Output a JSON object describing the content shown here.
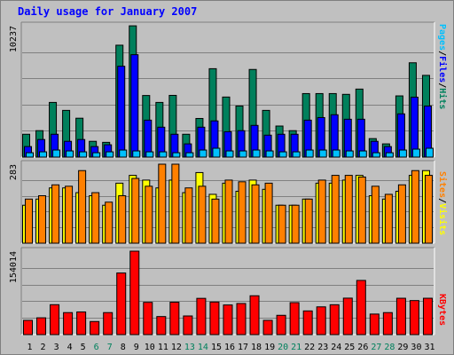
{
  "title": "Daily usage for January 2007",
  "colors": {
    "background": "#c0c0c0",
    "title": "#0000ff",
    "hits": "#00805c",
    "files": "#0000ff",
    "pages": "#00c0ff",
    "visits": "#ffff00",
    "sites": "#ff8000",
    "kbytes": "#ff0000",
    "weekend_day_label": "#00805c",
    "weekday_day_label": "#000000"
  },
  "chart_data": [
    {
      "type": "bar",
      "title": "Daily usage for January 2007",
      "panel": "top",
      "y_max_label": "10237",
      "ylim": [
        0,
        10237
      ],
      "legend_placement": "right, vertical",
      "legend": [
        "Pages",
        "Files",
        "Hits"
      ],
      "grid": true,
      "categories": [
        "1",
        "2",
        "3",
        "4",
        "5",
        "6",
        "7",
        "8",
        "9",
        "10",
        "11",
        "12",
        "13",
        "14",
        "15",
        "16",
        "17",
        "18",
        "19",
        "20",
        "21",
        "22",
        "23",
        "24",
        "25",
        "26",
        "27",
        "28",
        "29",
        "30",
        "31"
      ],
      "series": [
        {
          "name": "Hits",
          "color": "#00805c",
          "values": [
            1780,
            2060,
            4260,
            3640,
            3030,
            1230,
            1150,
            8720,
            10230,
            4800,
            4260,
            4810,
            1780,
            3010,
            6890,
            4680,
            3980,
            6830,
            3640,
            2420,
            2060,
            4950,
            4950,
            4950,
            4890,
            5300,
            1440,
            1030,
            4770,
            7350,
            6370
          ]
        },
        {
          "name": "Files",
          "color": "#0000ff",
          "values": [
            820,
            1370,
            1780,
            1230,
            1370,
            820,
            960,
            7080,
            7980,
            2880,
            2330,
            1780,
            1030,
            2330,
            2820,
            1980,
            2060,
            2470,
            1710,
            1780,
            1780,
            2880,
            3080,
            3300,
            2950,
            2950,
            1230,
            820,
            3370,
            4670,
            3980
          ]
        },
        {
          "name": "Pages",
          "color": "#00c0ff",
          "values": [
            340,
            410,
            550,
            480,
            410,
            340,
            410,
            550,
            480,
            410,
            410,
            340,
            340,
            550,
            690,
            480,
            480,
            550,
            480,
            410,
            410,
            550,
            550,
            550,
            480,
            480,
            340,
            340,
            550,
            620,
            690
          ]
        }
      ]
    },
    {
      "type": "bar",
      "panel": "middle",
      "y_max_label": "283",
      "ylim": [
        0,
        283
      ],
      "legend_placement": "right, vertical",
      "legend": [
        "Sites",
        "Visits"
      ],
      "grid": true,
      "categories": [
        "1",
        "2",
        "3",
        "4",
        "5",
        "6",
        "7",
        "8",
        "9",
        "10",
        "11",
        "12",
        "13",
        "14",
        "15",
        "16",
        "17",
        "18",
        "19",
        "20",
        "21",
        "22",
        "23",
        "24",
        "25",
        "26",
        "27",
        "28",
        "29",
        "30",
        "31"
      ],
      "series": [
        {
          "name": "Visits",
          "color": "#ffff00",
          "values": [
            136,
            158,
            198,
            198,
            181,
            170,
            136,
            215,
            243,
            226,
            198,
            226,
            181,
            253,
            175,
            215,
            186,
            226,
            193,
            136,
            136,
            158,
            215,
            215,
            226,
            243,
            170,
            158,
            186,
            243,
            260
          ]
        },
        {
          "name": "Sites",
          "color": "#ff8000",
          "values": [
            158,
            170,
            209,
            204,
            260,
            181,
            147,
            170,
            232,
            204,
            283,
            283,
            198,
            204,
            158,
            226,
            220,
            209,
            215,
            136,
            136,
            158,
            226,
            243,
            243,
            237,
            204,
            175,
            209,
            260,
            243
          ]
        }
      ]
    },
    {
      "type": "bar",
      "panel": "bottom",
      "y_max_label": "154014",
      "ylim": [
        0,
        154014
      ],
      "legend": [
        "KBytes"
      ],
      "grid": true,
      "categories": [
        "1",
        "2",
        "3",
        "4",
        "5",
        "6",
        "7",
        "8",
        "9",
        "10",
        "11",
        "12",
        "13",
        "14",
        "15",
        "16",
        "17",
        "18",
        "19",
        "20",
        "21",
        "22",
        "23",
        "24",
        "25",
        "26",
        "27",
        "28",
        "29",
        "30",
        "31"
      ],
      "series": [
        {
          "name": "KBytes",
          "color": "#ff0000",
          "values": [
            26300,
            31000,
            55200,
            40600,
            41800,
            24100,
            40600,
            113700,
            154000,
            59500,
            33300,
            59800,
            34400,
            66900,
            60100,
            54700,
            57400,
            71700,
            26300,
            35600,
            59000,
            43700,
            51200,
            55100,
            67300,
            100000,
            37900,
            40600,
            67100,
            62800,
            67100
          ]
        }
      ]
    }
  ],
  "day_labels": [
    "1",
    "2",
    "3",
    "4",
    "5",
    "6",
    "7",
    "8",
    "9",
    "10",
    "11",
    "12",
    "13",
    "14",
    "15",
    "16",
    "17",
    "18",
    "19",
    "20",
    "21",
    "22",
    "23",
    "24",
    "25",
    "26",
    "27",
    "28",
    "29",
    "30",
    "31"
  ],
  "weekend_days": [
    6,
    7,
    13,
    14,
    20,
    21,
    27,
    28
  ],
  "legend_right": {
    "pages": "Pages",
    "files": "Files",
    "hits": "Hits",
    "sites": "Sites",
    "visits": "Visits",
    "kbytes": "KBytes",
    "separator": "/"
  }
}
